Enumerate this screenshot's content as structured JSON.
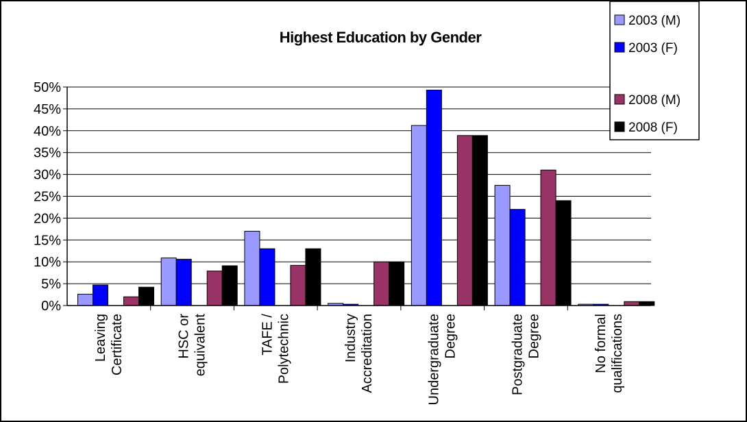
{
  "chart_data": {
    "type": "bar",
    "title": "Highest Education by Gender",
    "xlabel": "",
    "ylabel": "",
    "ylim": [
      0,
      0.5
    ],
    "yticks": [
      "0%",
      "5%",
      "10%",
      "15%",
      "20%",
      "25%",
      "30%",
      "35%",
      "40%",
      "45%",
      "50%"
    ],
    "grid": "horizontal",
    "legend_position": "top-right",
    "categories": [
      [
        "Leaving",
        "Certificate"
      ],
      [
        "HSC or",
        "equivalent"
      ],
      [
        "TAFE /",
        "Polytechnic"
      ],
      [
        "Industry",
        "Accreditation"
      ],
      [
        "Undergraduate",
        "Degree"
      ],
      [
        "Postgraduate",
        "Degree"
      ],
      [
        "No formal",
        "qualifications"
      ]
    ],
    "series": [
      {
        "name": "2003 (M)",
        "color": "#9999ff",
        "values": [
          0.026,
          0.109,
          0.17,
          0.005,
          0.412,
          0.275,
          0.003
        ]
      },
      {
        "name": "2003 (F)",
        "color": "#0000ff",
        "values": [
          0.047,
          0.106,
          0.13,
          0.003,
          0.493,
          0.22,
          0.003
        ]
      },
      {
        "name": "2008 (M)",
        "color": "#993366",
        "values": [
          0.02,
          0.079,
          0.092,
          0.1,
          0.389,
          0.31,
          0.009
        ]
      },
      {
        "name": "2008 (F)",
        "color": "#000000",
        "values": [
          0.042,
          0.091,
          0.13,
          0.1,
          0.389,
          0.24,
          0.009
        ]
      }
    ]
  }
}
